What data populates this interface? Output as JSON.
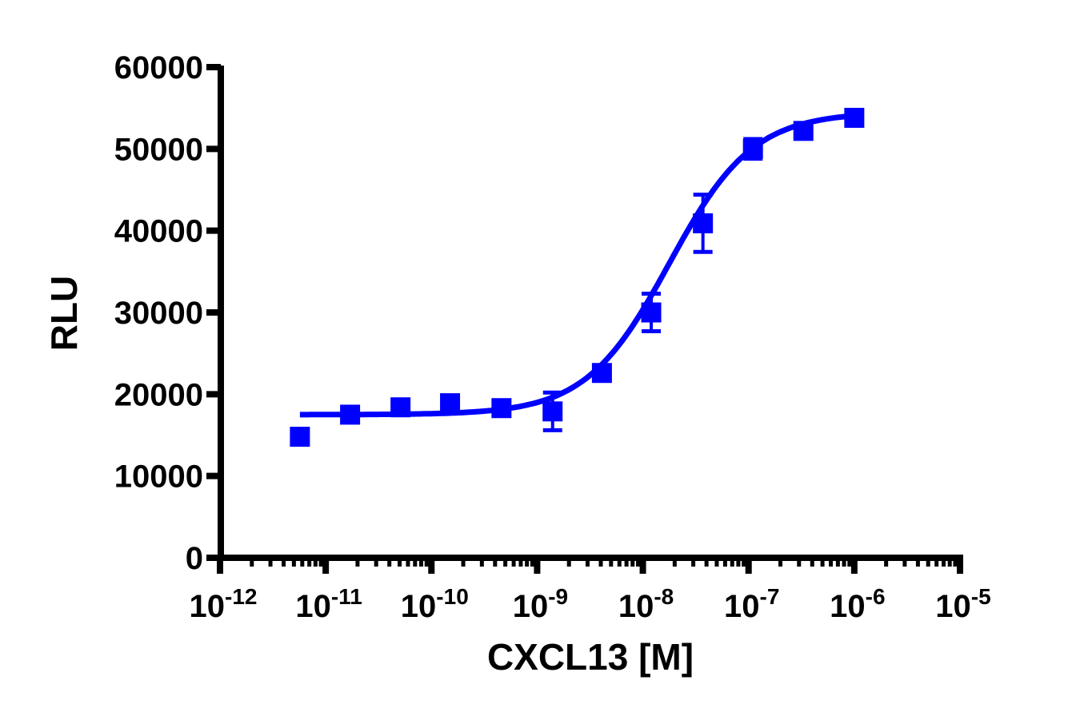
{
  "chart_data": {
    "type": "scatter",
    "title": "",
    "xlabel": "CXCL13 [M]",
    "ylabel": "RLU",
    "xscale": "log",
    "xlim": [
      1e-12,
      1e-05
    ],
    "ylim": [
      0,
      60000
    ],
    "grid": false,
    "legend": null,
    "x_tick_labels": [
      {
        "base": "10",
        "exp": "-12"
      },
      {
        "base": "10",
        "exp": "-11"
      },
      {
        "base": "10",
        "exp": "-10"
      },
      {
        "base": "10",
        "exp": "-9"
      },
      {
        "base": "10",
        "exp": "-8"
      },
      {
        "base": "10",
        "exp": "-7"
      },
      {
        "base": "10",
        "exp": "-6"
      },
      {
        "base": "10",
        "exp": "-5"
      }
    ],
    "y_tick_labels": [
      "0",
      "10000",
      "20000",
      "30000",
      "40000",
      "50000",
      "60000"
    ],
    "series": [
      {
        "name": "CXCL13",
        "color": "#0000ff",
        "marker": "square",
        "x": [
          5.7e-12,
          1.7e-11,
          5.1e-11,
          1.5e-10,
          4.6e-10,
          1.4e-09,
          4.1e-09,
          1.2e-08,
          3.7e-08,
          1.1e-07,
          3.3e-07,
          1e-06
        ],
        "y": [
          14800,
          17500,
          18400,
          18900,
          18300,
          17900,
          22600,
          30000,
          40900,
          50000,
          52200,
          53800
        ],
        "error": [
          0,
          0,
          0,
          0,
          0,
          2300,
          0,
          2300,
          3500,
          1200,
          0,
          0
        ]
      }
    ],
    "fit": {
      "type": "four-parameter logistic",
      "color": "#0000ff",
      "bottom": 17500,
      "top": 54500,
      "log_ec50": -7.75,
      "hill_slope": 1.1,
      "x_range": [
        5.7e-12,
        1e-06
      ]
    }
  }
}
